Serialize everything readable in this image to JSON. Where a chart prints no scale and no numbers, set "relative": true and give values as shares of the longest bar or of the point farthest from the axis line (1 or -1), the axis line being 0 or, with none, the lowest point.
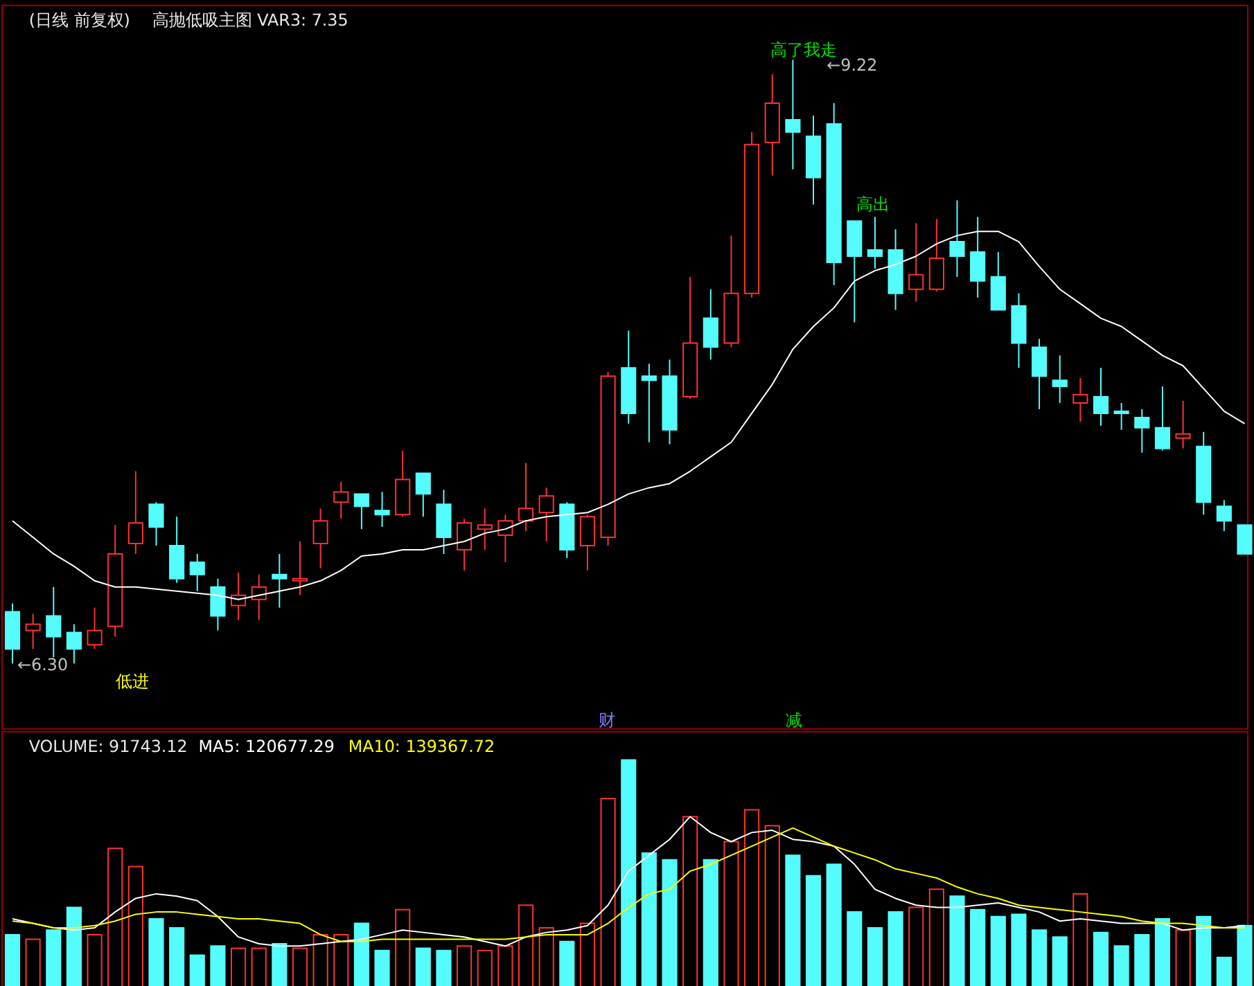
{
  "chart_data": [
    {
      "type": "candlestick",
      "title": "(日线 前复权)",
      "subtitle": "高抛低吸主图  VAR3: 7.35",
      "tick_labels": false,
      "categories": [
        null,
        null,
        null,
        null,
        null,
        null,
        null,
        null,
        null,
        null,
        null,
        null,
        null,
        null,
        null,
        null,
        null,
        null,
        null,
        null,
        null,
        null,
        null,
        null,
        null,
        null,
        null,
        null,
        null,
        null,
        null,
        null,
        null,
        null,
        null,
        null,
        null,
        null,
        null,
        null,
        null,
        null,
        null,
        null,
        null,
        null,
        null,
        null,
        null,
        null,
        null,
        null,
        null,
        null,
        null,
        null,
        null,
        null,
        null,
        null,
        null
      ],
      "ohlc": [
        [
          6.55,
          6.59,
          6.3,
          6.37
        ],
        [
          6.46,
          6.54,
          6.37,
          6.49
        ],
        [
          6.53,
          6.67,
          6.33,
          6.43
        ],
        [
          6.45,
          6.49,
          6.3,
          6.37
        ],
        [
          6.39,
          6.57,
          6.37,
          6.46
        ],
        [
          6.48,
          6.97,
          6.43,
          6.83
        ],
        [
          6.88,
          7.23,
          6.83,
          6.98
        ],
        [
          7.07,
          7.08,
          6.87,
          6.96
        ],
        [
          6.87,
          7.01,
          6.69,
          6.71
        ],
        [
          6.79,
          6.83,
          6.65,
          6.73
        ],
        [
          6.67,
          6.71,
          6.46,
          6.53
        ],
        [
          6.58,
          6.74,
          6.51,
          6.63
        ],
        [
          6.61,
          6.73,
          6.51,
          6.67
        ],
        [
          6.73,
          6.83,
          6.57,
          6.71
        ],
        [
          6.7,
          6.89,
          6.63,
          6.71
        ],
        [
          6.88,
          7.05,
          6.76,
          6.99
        ],
        [
          7.08,
          7.18,
          7.0,
          7.13
        ],
        [
          7.12,
          7.12,
          6.95,
          7.06
        ],
        [
          7.04,
          7.13,
          6.96,
          7.02
        ],
        [
          7.02,
          7.33,
          7.01,
          7.19
        ],
        [
          7.22,
          7.22,
          7.01,
          7.12
        ],
        [
          7.07,
          7.14,
          6.83,
          6.91
        ],
        [
          6.85,
          7.0,
          6.75,
          6.98
        ],
        [
          6.95,
          7.05,
          6.85,
          6.97
        ],
        [
          6.92,
          7.02,
          6.79,
          6.99
        ],
        [
          6.99,
          7.27,
          6.94,
          7.05
        ],
        [
          7.03,
          7.15,
          6.89,
          7.11
        ],
        [
          7.07,
          7.08,
          6.81,
          6.85
        ],
        [
          6.87,
          7.02,
          6.75,
          7.01
        ],
        [
          6.91,
          7.71,
          6.87,
          7.69
        ],
        [
          7.73,
          7.91,
          7.46,
          7.51
        ],
        [
          7.69,
          7.75,
          7.37,
          7.67
        ],
        [
          7.69,
          7.77,
          7.36,
          7.43
        ],
        [
          7.59,
          8.17,
          7.58,
          7.85
        ],
        [
          7.97,
          8.11,
          7.77,
          7.83
        ],
        [
          7.85,
          8.37,
          7.83,
          8.09
        ],
        [
          8.09,
          8.87,
          8.07,
          8.81
        ],
        [
          8.82,
          9.15,
          8.66,
          9.01
        ],
        [
          8.93,
          9.22,
          8.69,
          8.87
        ],
        [
          8.85,
          8.95,
          8.52,
          8.65
        ],
        [
          8.91,
          9.01,
          8.13,
          8.24
        ],
        [
          8.44,
          8.44,
          7.95,
          8.27
        ],
        [
          8.3,
          8.46,
          8.21,
          8.27
        ],
        [
          8.3,
          8.4,
          8.01,
          8.09
        ],
        [
          8.11,
          8.43,
          8.05,
          8.18
        ],
        [
          8.11,
          8.45,
          8.1,
          8.26
        ],
        [
          8.34,
          8.54,
          8.17,
          8.27
        ],
        [
          8.29,
          8.46,
          8.07,
          8.15
        ],
        [
          8.17,
          8.29,
          8.01,
          8.01
        ],
        [
          8.03,
          8.09,
          7.73,
          7.85
        ],
        [
          7.83,
          7.87,
          7.53,
          7.69
        ],
        [
          7.67,
          7.79,
          7.56,
          7.64
        ],
        [
          7.56,
          7.68,
          7.47,
          7.6
        ],
        [
          7.59,
          7.73,
          7.45,
          7.51
        ],
        [
          7.52,
          7.56,
          7.43,
          7.51
        ],
        [
          7.49,
          7.53,
          7.32,
          7.44
        ],
        [
          7.44,
          7.64,
          7.33,
          7.34
        ],
        [
          7.39,
          7.57,
          7.34,
          7.41
        ],
        [
          7.35,
          7.42,
          7.02,
          7.08
        ],
        [
          7.06,
          7.09,
          6.94,
          6.99
        ],
        [
          6.97,
          6.97,
          6.83,
          6.83
        ]
      ],
      "colors": [
        "#54fcfc",
        "#ff3232",
        "#54fcfc",
        "#54fcfc",
        "#ff3232",
        "#ff3232",
        "#ff3232",
        "#54fcfc",
        "#54fcfc",
        "#54fcfc",
        "#54fcfc",
        "#ff3232",
        "#ff3232",
        "#54fcfc",
        "#ff3232",
        "#ff3232",
        "#ff3232",
        "#54fcfc",
        "#54fcfc",
        "#ff3232",
        "#54fcfc",
        "#54fcfc",
        "#ff3232",
        "#ff3232",
        "#ff3232",
        "#ff3232",
        "#ff3232",
        "#54fcfc",
        "#ff3232",
        "#ff3232",
        "#54fcfc",
        "#54fcfc",
        "#54fcfc",
        "#ff3232",
        "#54fcfc",
        "#ff3232",
        "#ff3232",
        "#ff3232",
        "#54fcfc",
        "#54fcfc",
        "#54fcfc",
        "#54fcfc",
        "#54fcfc",
        "#54fcfc",
        "#ff3232",
        "#ff3232",
        "#54fcfc",
        "#54fcfc",
        "#54fcfc",
        "#54fcfc",
        "#54fcfc",
        "#54fcfc",
        "#ff3232",
        "#54fcfc",
        "#54fcfc",
        "#54fcfc",
        "#54fcfc",
        "#ff3232",
        "#54fcfc",
        "#54fcfc",
        "#54fcfc"
      ],
      "series": [
        {
          "type": "line",
          "color": "#ffffff",
          "values": [
            6.99,
            6.91,
            6.83,
            6.77,
            6.7,
            6.67,
            6.67,
            6.66,
            6.65,
            6.64,
            6.63,
            6.61,
            6.63,
            6.65,
            6.67,
            6.7,
            6.75,
            6.82,
            6.83,
            6.85,
            6.85,
            6.87,
            6.89,
            6.93,
            6.95,
            6.99,
            7.01,
            7.02,
            7.03,
            7.07,
            7.12,
            7.15,
            7.17,
            7.23,
            7.3,
            7.37,
            7.51,
            7.65,
            7.82,
            7.93,
            8.02,
            8.15,
            8.2,
            8.23,
            8.27,
            8.33,
            8.37,
            8.39,
            8.39,
            8.34,
            8.22,
            8.11,
            8.04,
            7.97,
            7.93,
            7.86,
            7.79,
            7.74,
            7.63,
            7.52,
            7.46
          ]
        }
      ],
      "annotations": [
        "低进",
        "高了我走",
        "高出",
        "←6.30",
        "←9.22",
        "财",
        "减"
      ]
    },
    {
      "type": "bar",
      "title": "VOLUME: 91743.12",
      "relative": true,
      "tick_labels": false,
      "categories": [
        null,
        null,
        null,
        null,
        null,
        null,
        null,
        null,
        null,
        null,
        null,
        null,
        null,
        null,
        null,
        null,
        null,
        null,
        null,
        null,
        null,
        null,
        null,
        null,
        null,
        null,
        null,
        null,
        null,
        null,
        null,
        null,
        null,
        null,
        null,
        null,
        null,
        null,
        null,
        null,
        null,
        null,
        null,
        null,
        null,
        null,
        null,
        null,
        null,
        null,
        null,
        null,
        null,
        null,
        null,
        null,
        null,
        null,
        null,
        null,
        null
      ],
      "series": [
        {
          "type": "bar",
          "colors": [
            "#54fcfc",
            "#ff3232",
            "#54fcfc",
            "#54fcfc",
            "#ff3232",
            "#ff3232",
            "#ff3232",
            "#54fcfc",
            "#54fcfc",
            "#54fcfc",
            "#54fcfc",
            "#ff3232",
            "#ff3232",
            "#54fcfc",
            "#ff3232",
            "#ff3232",
            "#ff3232",
            "#54fcfc",
            "#54fcfc",
            "#ff3232",
            "#54fcfc",
            "#54fcfc",
            "#ff3232",
            "#ff3232",
            "#ff3232",
            "#ff3232",
            "#ff3232",
            "#54fcfc",
            "#ff3232",
            "#ff3232",
            "#54fcfc",
            "#54fcfc",
            "#54fcfc",
            "#ff3232",
            "#54fcfc",
            "#ff3232",
            "#ff3232",
            "#ff3232",
            "#54fcfc",
            "#54fcfc",
            "#54fcfc",
            "#54fcfc",
            "#54fcfc",
            "#54fcfc",
            "#ff3232",
            "#ff3232",
            "#54fcfc",
            "#54fcfc",
            "#54fcfc",
            "#54fcfc",
            "#54fcfc",
            "#54fcfc",
            "#ff3232",
            "#54fcfc",
            "#54fcfc",
            "#54fcfc",
            "#54fcfc",
            "#ff3232",
            "#54fcfc",
            "#54fcfc",
            "#54fcfc"
          ],
          "values": [
            0.23,
            0.21,
            0.25,
            0.35,
            0.23,
            0.61,
            0.53,
            0.3,
            0.26,
            0.14,
            0.18,
            0.17,
            0.17,
            0.19,
            0.17,
            0.23,
            0.23,
            0.28,
            0.16,
            0.34,
            0.17,
            0.16,
            0.18,
            0.16,
            0.18,
            0.36,
            0.26,
            0.2,
            0.28,
            0.83,
            1,
            0.59,
            0.56,
            0.75,
            0.56,
            0.64,
            0.78,
            0.71,
            0.58,
            0.49,
            0.54,
            0.33,
            0.26,
            0.33,
            0.35,
            0.43,
            0.4,
            0.34,
            0.31,
            0.32,
            0.25,
            0.22,
            0.41,
            0.24,
            0.18,
            0.23,
            0.3,
            0.25,
            0.31,
            0.13,
            0.27
          ]
        },
        {
          "type": "line",
          "name": "MA5: 120677.29",
          "color": "#ffffff",
          "values": [
            0.3,
            0.28,
            0.26,
            0.25,
            0.26,
            0.33,
            0.39,
            0.41,
            0.4,
            0.38,
            0.31,
            0.22,
            0.19,
            0.18,
            0.18,
            0.19,
            0.2,
            0.21,
            0.23,
            0.25,
            0.24,
            0.23,
            0.22,
            0.2,
            0.18,
            0.22,
            0.24,
            0.25,
            0.27,
            0.36,
            0.51,
            0.58,
            0.65,
            0.75,
            0.68,
            0.64,
            0.68,
            0.69,
            0.65,
            0.64,
            0.62,
            0.54,
            0.43,
            0.39,
            0.36,
            0.35,
            0.35,
            0.36,
            0.37,
            0.35,
            0.33,
            0.29,
            0.3,
            0.29,
            0.28,
            0.28,
            0.28,
            0.25,
            0.26,
            0.26,
            0.27
          ]
        },
        {
          "type": "line",
          "name": "MA10: 139367.72",
          "color": "#ffff00",
          "values": [
            0.29,
            0.28,
            0.26,
            0.26,
            0.27,
            0.29,
            0.32,
            0.33,
            0.33,
            0.32,
            0.31,
            0.3,
            0.3,
            0.29,
            0.28,
            0.23,
            0.2,
            0.2,
            0.21,
            0.21,
            0.21,
            0.21,
            0.21,
            0.21,
            0.21,
            0.22,
            0.23,
            0.23,
            0.23,
            0.28,
            0.35,
            0.41,
            0.43,
            0.51,
            0.54,
            0.58,
            0.62,
            0.66,
            0.7,
            0.66,
            0.62,
            0.59,
            0.56,
            0.52,
            0.5,
            0.48,
            0.44,
            0.41,
            0.39,
            0.36,
            0.35,
            0.34,
            0.33,
            0.32,
            0.31,
            0.29,
            0.28,
            0.28,
            0.27,
            0.26,
            0.26
          ]
        }
      ]
    }
  ]
}
